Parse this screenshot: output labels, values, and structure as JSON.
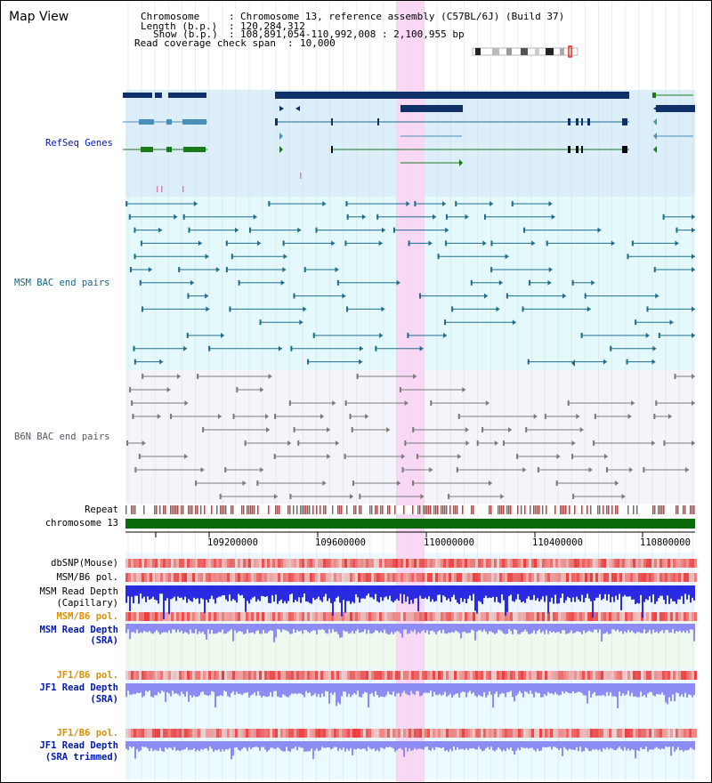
{
  "app_title": "Map View",
  "info": {
    "chromosome_key": "Chromosome",
    "chromosome_value": "Chromosome 13, reference assembly (C57BL/6J) (Build 37)",
    "length_key": "Length (b.p.)",
    "length_value": "120,284,312",
    "show_key": "Show (b.p.)",
    "show_value": "108,891,054-110,992,008 : 2,100,955 bp",
    "read_cov_key": "Read coverage check span",
    "read_cov_value": "10,000"
  },
  "tracks": {
    "refseq": "RefSeq Genes",
    "msm_bac": "MSM BAC end pairs",
    "b6n_bac": "B6N BAC end pairs",
    "repeat": "Repeat",
    "chromosome": "chromosome 13",
    "dbsnp": "dbSNP(Mouse)",
    "msm_b6_pol_1": "MSM/B6 pol.",
    "msm_read_depth_cap_1": "MSM Read Depth",
    "msm_read_depth_cap_2": "(Capillary)",
    "msm_b6_pol_2": "MSM/B6 pol.",
    "msm_read_depth_sra_1": "MSM Read Depth",
    "msm_read_depth_sra_2": "(SRA)",
    "jf1_b6_pol_1": "JF1/B6 pol.",
    "jf1_read_depth_sra_1": "JF1 Read Depth",
    "jf1_read_depth_sra_2": "(SRA)",
    "jf1_b6_pol_2": "JF1/B6 pol.",
    "jf1_read_depth_trim_1": "JF1 Read Depth",
    "jf1_read_depth_trim_2": "(SRA trimmed)"
  },
  "axis_ticks": [
    "109200000",
    "109600000",
    "110000000",
    "110400000",
    "110800000"
  ],
  "colors": {
    "refseq_bg": "#dbeefa",
    "msm_bg": "#e3f9fb",
    "b6n_bg": "#f3f5fa",
    "highlight": "#f9d8f6",
    "gene_navy": "#10306a",
    "gene_teal": "#4a8fb8",
    "gene_green": "#1a7a1a",
    "msm_line": "#1d6d8c",
    "b6n_line": "#7a7a7a",
    "chromosome_bar": "#0a6a0a",
    "pol_red": "#e23a3a",
    "depth_blue": "#2a2ae0",
    "depth_light_blue": "#8c8cf4",
    "label_blue": "#0018b0",
    "label_teal": "#126688",
    "label_orange": "#d89000"
  }
}
